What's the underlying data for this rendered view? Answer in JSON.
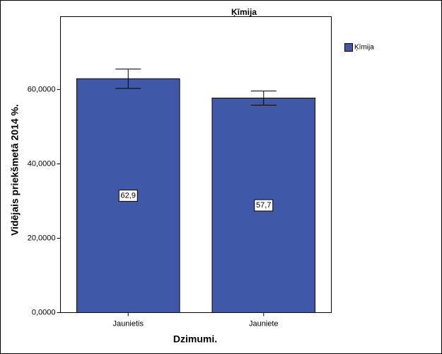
{
  "chart_data": {
    "type": "bar",
    "title": "Ķīmija",
    "x_label": "Dzimumi.",
    "y_label": "Vidējais priekšmetā 2014 %.",
    "categories": [
      "Jaunietis",
      "Jauniete"
    ],
    "series": [
      {
        "name": "Ķīmija",
        "color": "#3f58a8",
        "values": [
          62.9,
          57.7
        ],
        "value_labels": [
          "62,9",
          "57,7"
        ],
        "errors": [
          2.6,
          1.9
        ]
      }
    ],
    "ylim": [
      0,
      79.6
    ],
    "yticks": [
      {
        "value": 0,
        "label": "0,0000"
      },
      {
        "value": 20,
        "label": "20,0000"
      },
      {
        "value": 40,
        "label": "40,0000"
      },
      {
        "value": 60,
        "label": "60,0000"
      }
    ],
    "legend": "right"
  }
}
